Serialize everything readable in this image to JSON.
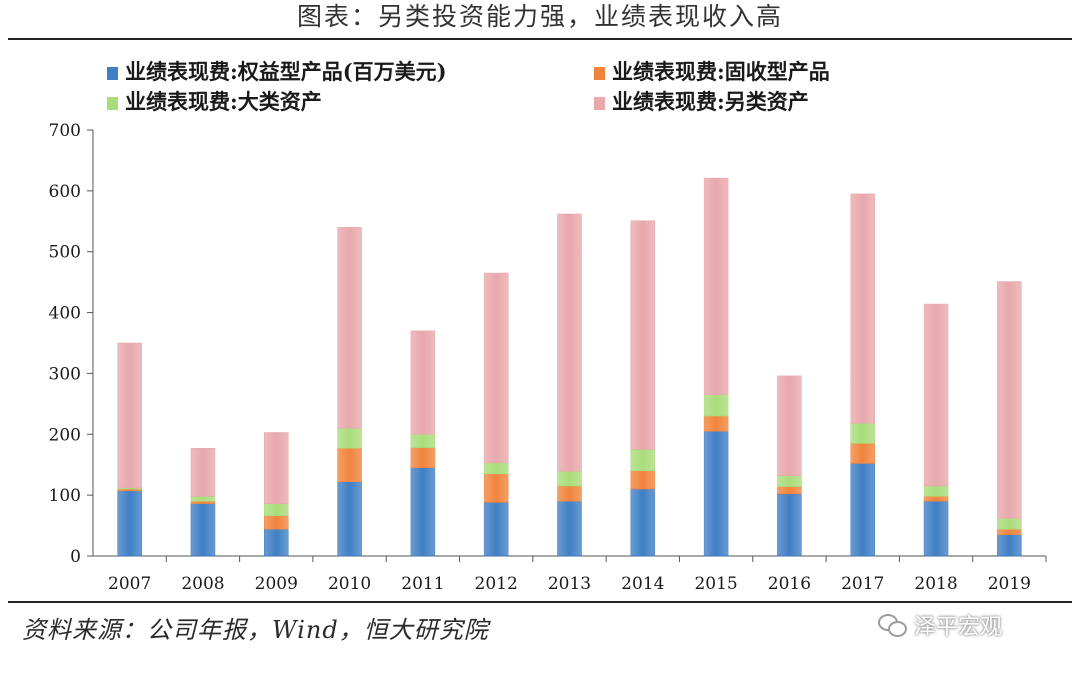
{
  "title": "图表：另类投资能力强，业绩表现收入高",
  "source": "资料来源：公司年报，Wind，恒大研究院",
  "watermark": "泽平宏观",
  "colors": {
    "series": [
      "#3f7fc4",
      "#f0843c",
      "#a9dc7a",
      "#e8a8ac"
    ],
    "axis": "#555555"
  },
  "chart_data": {
    "type": "bar",
    "stacked": true,
    "categories": [
      "2007",
      "2008",
      "2009",
      "2010",
      "2011",
      "2012",
      "2013",
      "2014",
      "2015",
      "2016",
      "2017",
      "2018",
      "2019"
    ],
    "series": [
      {
        "name": "业绩表现费:权益型产品(百万美元)",
        "values": [
          107,
          86,
          44,
          122,
          145,
          88,
          90,
          110,
          205,
          102,
          152,
          90,
          35
        ]
      },
      {
        "name": "业绩表现费:固收型产品",
        "values": [
          3,
          4,
          22,
          55,
          33,
          47,
          25,
          30,
          25,
          12,
          33,
          8,
          9
        ]
      },
      {
        "name": "业绩表现费:大类资产",
        "values": [
          2,
          8,
          20,
          33,
          22,
          18,
          24,
          35,
          35,
          18,
          33,
          17,
          18
        ]
      },
      {
        "name": "业绩表现费:另类资产",
        "values": [
          238,
          79,
          117,
          330,
          170,
          312,
          423,
          376,
          356,
          164,
          377,
          299,
          389
        ]
      }
    ],
    "ylim": [
      0,
      700
    ],
    "yticks": [
      0,
      100,
      200,
      300,
      400,
      500,
      600,
      700
    ],
    "grid": false,
    "legend_position": "top"
  }
}
